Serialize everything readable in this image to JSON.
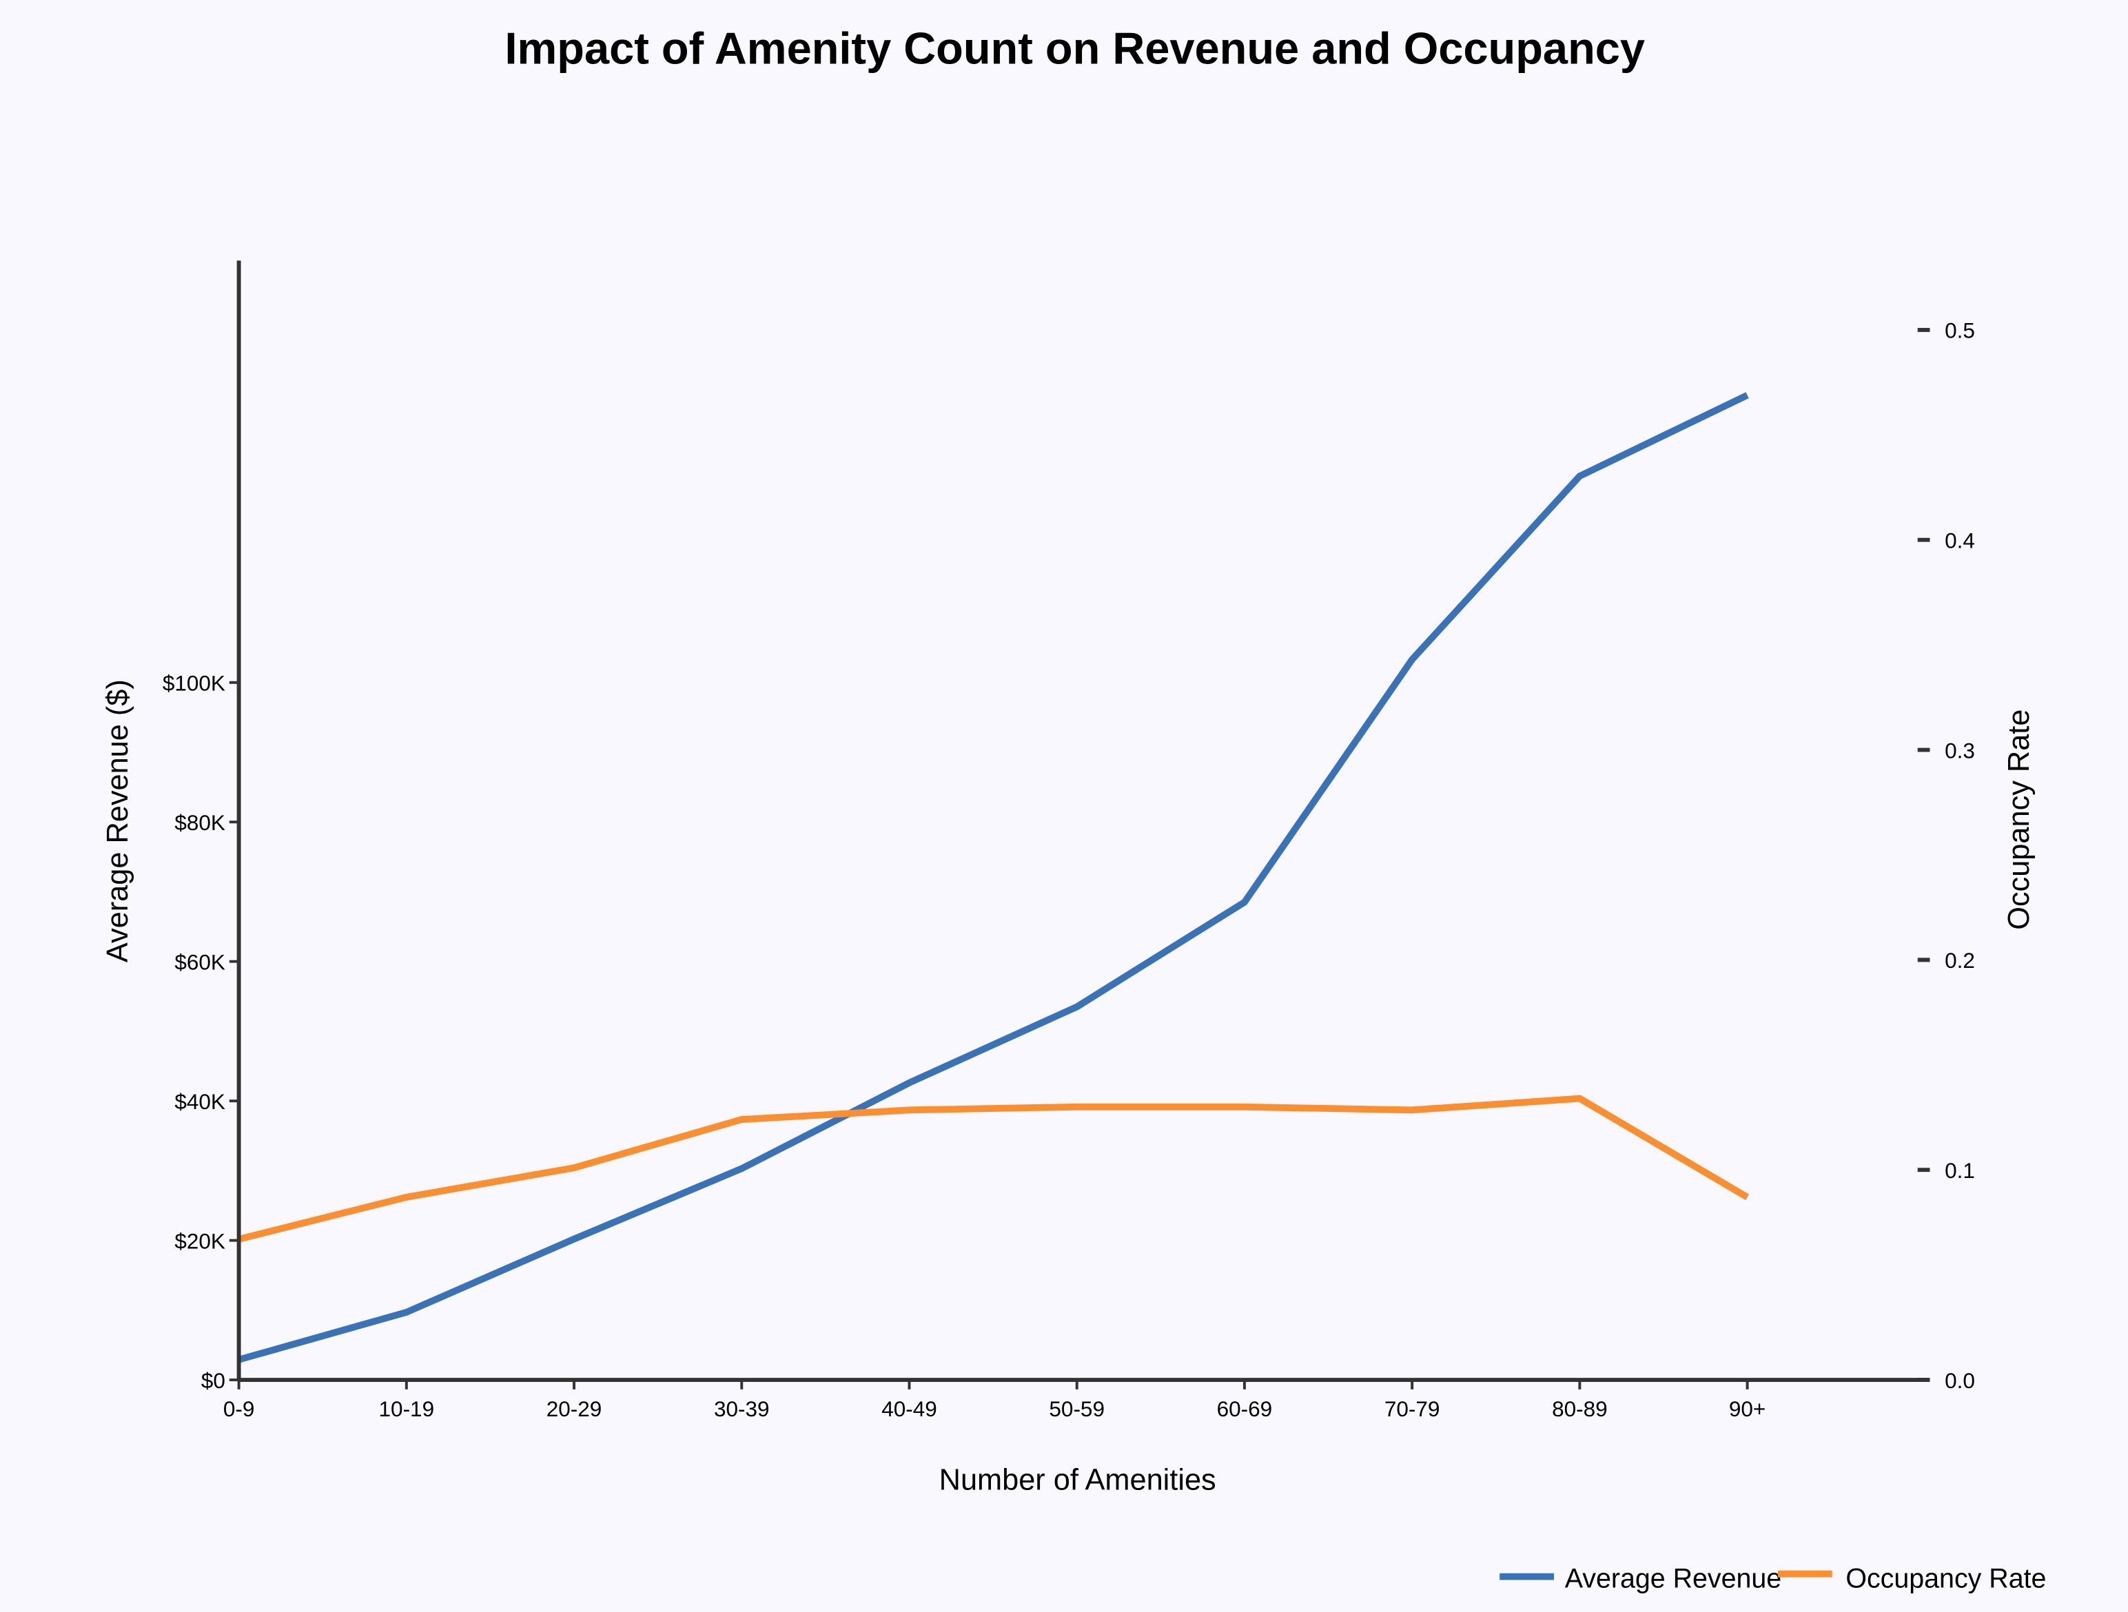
{
  "chart_data": {
    "type": "line",
    "title": "Impact of Amenity Count on Revenue and Occupancy",
    "xlabel": "Number of Amenities",
    "ylabel_left": "Average Revenue ($)",
    "ylabel_right": "Occupancy Rate",
    "categories": [
      "0-9",
      "10-19",
      "20-29",
      "30-39",
      "40-49",
      "50-59",
      "60-69",
      "70-79",
      "80-89",
      "90+"
    ],
    "ylim_left": [
      0,
      160500
    ],
    "ylim_right": [
      0,
      0.533
    ],
    "yticks_left": [
      {
        "v": 0,
        "label": "$0"
      },
      {
        "v": 20000,
        "label": "$20K"
      },
      {
        "v": 40000,
        "label": "$40K"
      },
      {
        "v": 60000,
        "label": "$60K"
      },
      {
        "v": 80000,
        "label": "$80K"
      },
      {
        "v": 100000,
        "label": "$100K"
      }
    ],
    "yticks_right": [
      {
        "v": 0,
        "label": "0.0"
      },
      {
        "v": 0.1,
        "label": "0.1"
      },
      {
        "v": 0.2,
        "label": "0.2"
      },
      {
        "v": 0.3,
        "label": "0.3"
      },
      {
        "v": 0.4,
        "label": "0.4"
      },
      {
        "v": 0.5,
        "label": "0.5"
      }
    ],
    "grid": false,
    "legend_position": "bottom-right",
    "series": [
      {
        "name": "Average Revenue",
        "axis": "left",
        "color": "#3a72b8",
        "values": [
          2900,
          9700,
          20200,
          30300,
          42600,
          53500,
          68500,
          103300,
          129600,
          141200
        ]
      },
      {
        "name": "Occupancy Rate",
        "axis": "right",
        "color": "#fb8f30",
        "values": [
          0.067,
          0.087,
          0.101,
          0.124,
          0.1285,
          0.13,
          0.13,
          0.1285,
          0.134,
          0.087
        ]
      }
    ]
  }
}
